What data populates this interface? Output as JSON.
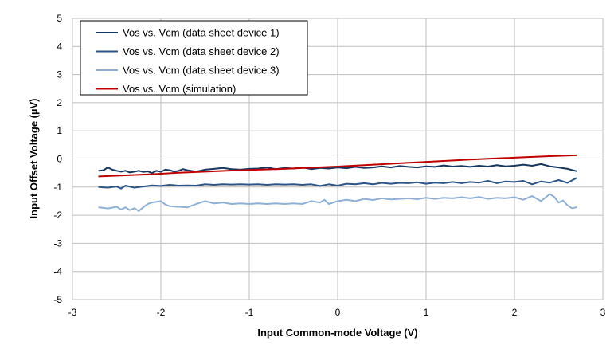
{
  "chart_data": {
    "type": "line",
    "title": "",
    "xlabel": "Input Common-mode Voltage (V)",
    "ylabel": "Input Offset Voltage (µV)",
    "xlim": [
      -3,
      3
    ],
    "ylim": [
      -5,
      5
    ],
    "xticks": [
      -3,
      -2,
      -1,
      0,
      1,
      2,
      3
    ],
    "yticks": [
      -5,
      -4,
      -3,
      -2,
      -1,
      0,
      1,
      2,
      3,
      4,
      5
    ],
    "grid": true,
    "legend_position": "top-left",
    "series": [
      {
        "name": "Vos vs. Vcm (data sheet device 1)",
        "color": "#17375e",
        "x": [
          -2.7,
          -2.65,
          -2.6,
          -2.55,
          -2.5,
          -2.45,
          -2.4,
          -2.35,
          -2.3,
          -2.25,
          -2.2,
          -2.15,
          -2.1,
          -2.05,
          -2.0,
          -1.95,
          -1.9,
          -1.85,
          -1.8,
          -1.75,
          -1.7,
          -1.6,
          -1.5,
          -1.4,
          -1.3,
          -1.2,
          -1.1,
          -1.0,
          -0.9,
          -0.8,
          -0.7,
          -0.6,
          -0.5,
          -0.4,
          -0.3,
          -0.2,
          -0.1,
          0.0,
          0.1,
          0.2,
          0.3,
          0.4,
          0.5,
          0.6,
          0.7,
          0.8,
          0.9,
          1.0,
          1.1,
          1.2,
          1.3,
          1.4,
          1.5,
          1.6,
          1.7,
          1.8,
          1.9,
          2.0,
          2.1,
          2.2,
          2.3,
          2.4,
          2.5,
          2.6,
          2.7
        ],
        "y": [
          -0.42,
          -0.4,
          -0.3,
          -0.38,
          -0.42,
          -0.45,
          -0.42,
          -0.48,
          -0.45,
          -0.42,
          -0.46,
          -0.44,
          -0.5,
          -0.42,
          -0.46,
          -0.38,
          -0.4,
          -0.45,
          -0.42,
          -0.36,
          -0.4,
          -0.45,
          -0.38,
          -0.35,
          -0.32,
          -0.36,
          -0.38,
          -0.35,
          -0.34,
          -0.3,
          -0.36,
          -0.32,
          -0.34,
          -0.3,
          -0.36,
          -0.32,
          -0.34,
          -0.3,
          -0.33,
          -0.28,
          -0.32,
          -0.3,
          -0.26,
          -0.3,
          -0.25,
          -0.28,
          -0.3,
          -0.26,
          -0.28,
          -0.23,
          -0.27,
          -0.25,
          -0.28,
          -0.24,
          -0.27,
          -0.22,
          -0.26,
          -0.24,
          -0.2,
          -0.24,
          -0.18,
          -0.26,
          -0.3,
          -0.35,
          -0.43
        ]
      },
      {
        "name": "Vos vs. Vcm (data sheet device 2)",
        "color": "#2d5486",
        "x": [
          -2.7,
          -2.6,
          -2.5,
          -2.45,
          -2.4,
          -2.3,
          -2.2,
          -2.1,
          -2.0,
          -1.9,
          -1.8,
          -1.7,
          -1.6,
          -1.5,
          -1.4,
          -1.3,
          -1.2,
          -1.1,
          -1.0,
          -0.9,
          -0.8,
          -0.7,
          -0.6,
          -0.5,
          -0.4,
          -0.3,
          -0.2,
          -0.1,
          0.0,
          0.1,
          0.2,
          0.3,
          0.4,
          0.5,
          0.6,
          0.7,
          0.8,
          0.9,
          1.0,
          1.1,
          1.2,
          1.3,
          1.4,
          1.5,
          1.6,
          1.7,
          1.8,
          1.9,
          2.0,
          2.1,
          2.2,
          2.3,
          2.4,
          2.5,
          2.6,
          2.7
        ],
        "y": [
          -1.0,
          -1.02,
          -0.98,
          -1.05,
          -0.95,
          -1.02,
          -0.98,
          -0.94,
          -0.96,
          -0.92,
          -0.95,
          -0.94,
          -0.95,
          -0.9,
          -0.92,
          -0.9,
          -0.91,
          -0.9,
          -0.91,
          -0.9,
          -0.92,
          -0.9,
          -0.91,
          -0.9,
          -0.92,
          -0.9,
          -0.96,
          -0.9,
          -0.95,
          -0.88,
          -0.9,
          -0.86,
          -0.9,
          -0.85,
          -0.88,
          -0.85,
          -0.86,
          -0.83,
          -0.88,
          -0.84,
          -0.86,
          -0.82,
          -0.86,
          -0.82,
          -0.84,
          -0.78,
          -0.86,
          -0.8,
          -0.82,
          -0.78,
          -0.9,
          -0.8,
          -0.84,
          -0.75,
          -0.85,
          -0.68
        ]
      },
      {
        "name": "Vos vs. Vcm (data sheet device 3)",
        "color": "#8fb0d6",
        "x": [
          -2.7,
          -2.6,
          -2.5,
          -2.45,
          -2.4,
          -2.35,
          -2.3,
          -2.25,
          -2.2,
          -2.15,
          -2.1,
          -2.0,
          -1.95,
          -1.9,
          -1.8,
          -1.7,
          -1.6,
          -1.5,
          -1.4,
          -1.3,
          -1.2,
          -1.1,
          -1.0,
          -0.9,
          -0.8,
          -0.7,
          -0.6,
          -0.5,
          -0.4,
          -0.3,
          -0.2,
          -0.15,
          -0.1,
          0.0,
          0.1,
          0.2,
          0.3,
          0.4,
          0.5,
          0.6,
          0.7,
          0.8,
          0.9,
          1.0,
          1.1,
          1.2,
          1.3,
          1.4,
          1.5,
          1.6,
          1.7,
          1.8,
          1.9,
          2.0,
          2.1,
          2.2,
          2.3,
          2.4,
          2.45,
          2.5,
          2.55,
          2.6,
          2.65,
          2.7
        ],
        "y": [
          -1.72,
          -1.76,
          -1.7,
          -1.8,
          -1.72,
          -1.82,
          -1.75,
          -1.85,
          -1.72,
          -1.6,
          -1.55,
          -1.5,
          -1.62,
          -1.68,
          -1.7,
          -1.72,
          -1.6,
          -1.5,
          -1.58,
          -1.55,
          -1.6,
          -1.58,
          -1.6,
          -1.58,
          -1.6,
          -1.58,
          -1.6,
          -1.58,
          -1.6,
          -1.5,
          -1.55,
          -1.45,
          -1.6,
          -1.5,
          -1.45,
          -1.5,
          -1.42,
          -1.46,
          -1.4,
          -1.44,
          -1.42,
          -1.4,
          -1.43,
          -1.38,
          -1.42,
          -1.38,
          -1.4,
          -1.36,
          -1.4,
          -1.35,
          -1.42,
          -1.38,
          -1.4,
          -1.36,
          -1.45,
          -1.32,
          -1.5,
          -1.25,
          -1.35,
          -1.55,
          -1.48,
          -1.65,
          -1.75,
          -1.72
        ]
      },
      {
        "name": "Vos vs. Vcm (simulation)",
        "color": "#c00000",
        "x": [
          -2.7,
          -2.4,
          -2.1,
          -1.8,
          -1.5,
          -1.2,
          -0.9,
          -0.6,
          -0.3,
          0.0,
          0.3,
          0.6,
          0.9,
          1.2,
          1.5,
          1.8,
          2.1,
          2.4,
          2.7
        ],
        "y": [
          -0.62,
          -0.58,
          -0.54,
          -0.49,
          -0.45,
          -0.41,
          -0.38,
          -0.35,
          -0.31,
          -0.27,
          -0.22,
          -0.17,
          -0.12,
          -0.07,
          -0.02,
          0.02,
          0.06,
          0.1,
          0.13
        ]
      }
    ]
  }
}
